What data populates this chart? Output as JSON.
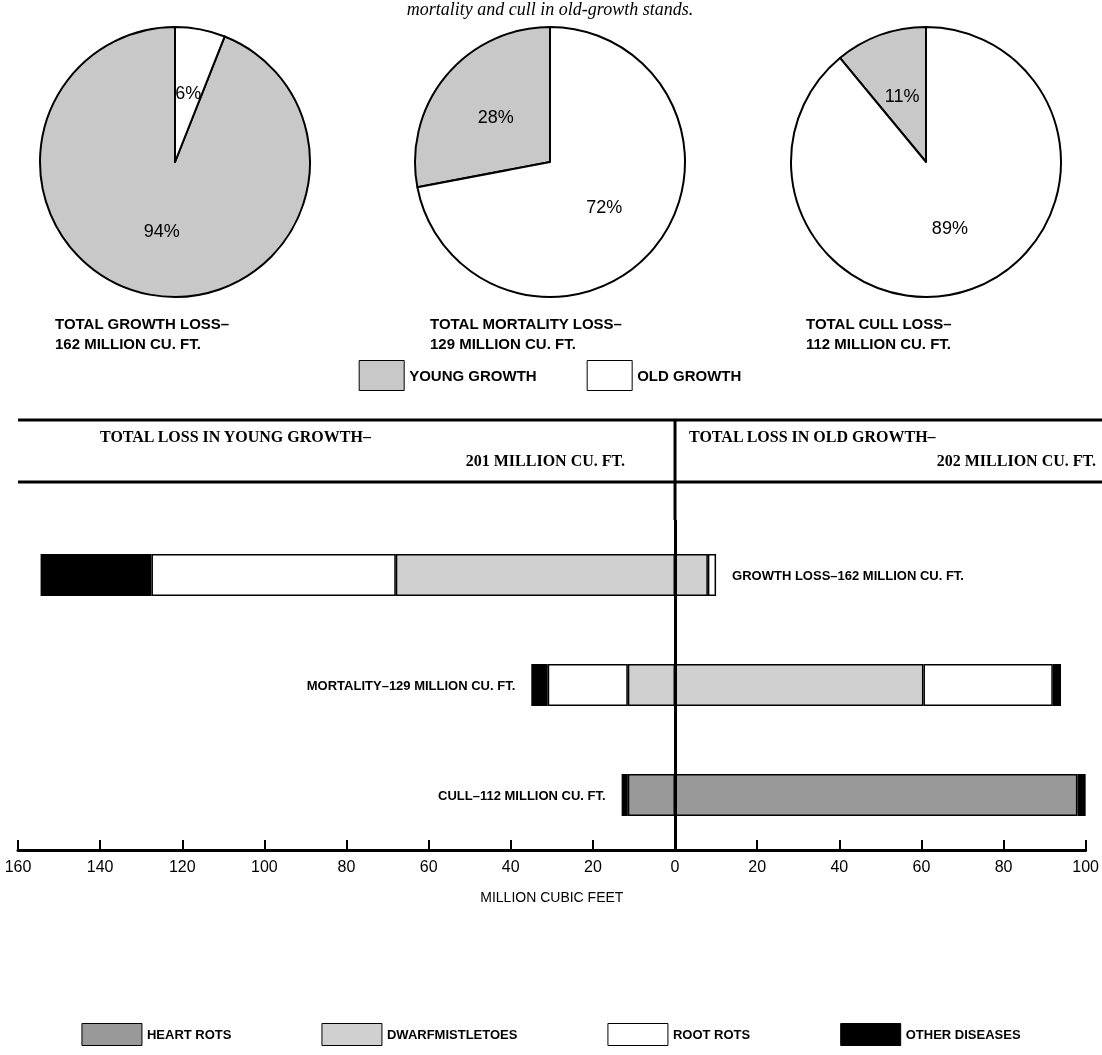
{
  "chart_data": [
    {
      "type": "pie",
      "title": "TOTAL GROWTH LOSS–\n162 MILLION CU. FT.",
      "categories": [
        null,
        null
      ],
      "values": [
        94,
        6
      ],
      "value_labels": [
        "94%",
        "6%"
      ],
      "colors": [
        "#c8c8c8",
        "#ffffff"
      ]
    },
    {
      "type": "pie",
      "title": "TOTAL MORTALITY LOSS–\n129 MILLION CU. FT.",
      "annotations": [
        "mortality and cull in old-growth stands."
      ],
      "categories": [
        "YOUNG GROWTH",
        "OLD GROWTH"
      ],
      "values": [
        28,
        72
      ],
      "value_labels": [
        "28%",
        "72%"
      ],
      "colors": [
        "#c8c8c8",
        "#ffffff"
      ],
      "legend": "bottom"
    },
    {
      "type": "pie",
      "title": "TOTAL CULL LOSS–\n112 MILLION CU. FT.",
      "categories": [
        null,
        null
      ],
      "values": [
        11,
        89
      ],
      "value_labels": [
        "11%",
        "89%"
      ],
      "colors": [
        "#c8c8c8",
        "#ffffff"
      ]
    },
    {
      "type": "bar",
      "orientation": "horizontal",
      "stacked": true,
      "xlabel": "MILLION CUBIC FEET",
      "annotations": [
        "TOTAL LOSS IN YOUNG GROWTH–\n201 MILLION CU. FT.",
        "TOTAL LOSS IN OLD GROWTH–\n202 MILLION CU. FT."
      ],
      "categories": [
        "GROWTH LOSS–162 MILLION CU. FT.",
        "MORTALITY–129 MILLION CU. FT.",
        "CULL–112 MILLION CU. FT."
      ],
      "series": [
        {
          "name": "HEART ROTS",
          "color": "#999999",
          "values": [
            null,
            null,
            -11.5
          ]
        },
        {
          "name": "DWARFMISTLETOES",
          "color": "#d0d0d0",
          "values": [
            -68,
            -11.5,
            null
          ]
        },
        {
          "name": "ROOT ROTS",
          "color": "#ffffff",
          "values": [
            -59.5,
            -19.5,
            null
          ]
        },
        {
          "name": "OTHER DISEASES",
          "color": "#000000",
          "values": [
            -27,
            -4,
            -1.5
          ]
        },
        {
          "color": "#999999",
          "values": [
            null,
            null,
            98
          ]
        },
        {
          "color": "#d0d0d0",
          "values": [
            8,
            60.5,
            null
          ]
        },
        {
          "color": "#ffffff",
          "values": [
            2,
            31.5,
            null
          ]
        },
        {
          "color": "#000000",
          "values": [
            null,
            2,
            2
          ]
        }
      ],
      "xlim": [
        -160,
        100
      ],
      "xticks": [
        {
          "value": -160,
          "label": "160"
        },
        {
          "value": -140,
          "label": "140"
        },
        {
          "value": -120,
          "label": "120"
        },
        {
          "value": -100,
          "label": "100"
        },
        {
          "value": -80,
          "label": "80"
        },
        {
          "value": -60,
          "label": "60"
        },
        {
          "value": -40,
          "label": "40"
        },
        {
          "value": -20,
          "label": "20"
        },
        0,
        20,
        40,
        60,
        80,
        100
      ],
      "ref_lines": [
        {
          "axis": "x",
          "value": 0
        }
      ],
      "grid": false,
      "legend": "bottom"
    }
  ]
}
